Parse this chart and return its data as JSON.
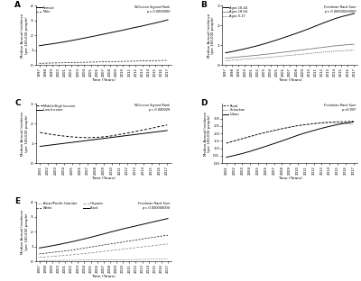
{
  "years": [
    1997,
    1998,
    1999,
    2000,
    2001,
    2002,
    2003,
    2004,
    2005,
    2006,
    2007,
    2008,
    2009,
    2010,
    2011,
    2012,
    2013,
    2014,
    2015,
    2016,
    2017
  ],
  "panel_A": {
    "title": "Wilcoxon Signed Rank",
    "pvalue": "p < 0.0000000",
    "label": "A",
    "female": [
      1.3,
      1.37,
      1.43,
      1.5,
      1.57,
      1.65,
      1.73,
      1.82,
      1.9,
      1.99,
      2.08,
      2.17,
      2.26,
      2.35,
      2.45,
      2.54,
      2.63,
      2.73,
      2.83,
      2.93,
      3.05
    ],
    "male": [
      0.12,
      0.13,
      0.14,
      0.15,
      0.16,
      0.17,
      0.18,
      0.19,
      0.2,
      0.21,
      0.22,
      0.23,
      0.24,
      0.25,
      0.26,
      0.27,
      0.28,
      0.29,
      0.3,
      0.31,
      0.32
    ],
    "ylim": [
      0,
      4
    ],
    "yticks": [
      0,
      1,
      2,
      3,
      4
    ]
  },
  "panel_B": {
    "title": "Friedman Rank Sum",
    "pvalue": "p < 0.00000000000",
    "label": "B",
    "age1_label": "Ages 18-44",
    "age2_label": "Ages 18-64",
    "age3_label": "Ages 0-17",
    "age1": [
      0.62,
      0.68,
      0.75,
      0.82,
      0.9,
      0.98,
      1.07,
      1.17,
      1.27,
      1.38,
      1.49,
      1.6,
      1.72,
      1.84,
      1.97,
      2.1,
      2.22,
      2.34,
      2.44,
      2.52,
      2.6
    ],
    "age2": [
      0.35,
      0.38,
      0.41,
      0.44,
      0.47,
      0.5,
      0.54,
      0.57,
      0.61,
      0.65,
      0.69,
      0.73,
      0.77,
      0.81,
      0.85,
      0.89,
      0.93,
      0.97,
      1.0,
      1.03,
      1.05
    ],
    "age3": [
      0.22,
      0.25,
      0.27,
      0.3,
      0.32,
      0.35,
      0.37,
      0.4,
      0.43,
      0.46,
      0.49,
      0.52,
      0.55,
      0.58,
      0.62,
      0.65,
      0.68,
      0.7,
      0.72,
      0.74,
      0.75
    ],
    "ylim": [
      0,
      3
    ],
    "yticks": [
      0,
      1,
      2,
      3
    ]
  },
  "panel_C": {
    "title": "Wilcoxon Signed Rank",
    "pvalue": "p < 0.000029",
    "label": "C",
    "years_C": [
      2001,
      2002,
      2003,
      2004,
      2005,
      2006,
      2007,
      2008,
      2009,
      2010,
      2011,
      2012,
      2013,
      2014,
      2015,
      2016,
      2017
    ],
    "middle_high": [
      1.55,
      1.48,
      1.42,
      1.37,
      1.33,
      1.3,
      1.29,
      1.3,
      1.33,
      1.38,
      1.45,
      1.52,
      1.6,
      1.68,
      1.76,
      1.85,
      1.93
    ],
    "low_income": [
      0.85,
      0.9,
      0.95,
      1.0,
      1.05,
      1.1,
      1.15,
      1.2,
      1.25,
      1.3,
      1.35,
      1.4,
      1.45,
      1.5,
      1.55,
      1.6,
      1.65
    ],
    "ylim": [
      0,
      3
    ],
    "yticks": [
      0,
      1,
      2,
      3
    ]
  },
  "panel_D": {
    "title": "Friedman Rank Sum",
    "pvalue": "p <0.007",
    "label": "D",
    "years_D": [
      2001,
      2002,
      2003,
      2004,
      2005,
      2006,
      2007,
      2008,
      2009,
      2010,
      2011,
      2012,
      2013,
      2014,
      2015,
      2016,
      2017
    ],
    "rural": [
      1.35,
      1.5,
      1.65,
      1.8,
      1.95,
      2.08,
      2.2,
      2.32,
      2.43,
      2.53,
      2.6,
      2.67,
      2.72,
      2.76,
      2.79,
      2.8,
      2.82
    ],
    "suburban": [
      1.35,
      1.5,
      1.65,
      1.8,
      1.95,
      2.08,
      2.2,
      2.32,
      2.42,
      2.52,
      2.59,
      2.65,
      2.7,
      2.73,
      2.73,
      2.68,
      2.6
    ],
    "urban": [
      0.4,
      0.52,
      0.65,
      0.8,
      0.97,
      1.14,
      1.32,
      1.5,
      1.69,
      1.88,
      2.05,
      2.2,
      2.35,
      2.48,
      2.6,
      2.7,
      2.78
    ],
    "ylim": [
      0,
      4
    ],
    "yticks": [
      0.0,
      0.5,
      1.0,
      1.5,
      2.0,
      2.5,
      3.0
    ]
  },
  "panel_E": {
    "title": "Friedman Rank Sum",
    "pvalue": "p < 0.000000000",
    "label": "E",
    "asian": [
      0.05,
      0.055,
      0.06,
      0.065,
      0.07,
      0.075,
      0.08,
      0.085,
      0.09,
      0.095,
      0.1,
      0.105,
      0.11,
      0.115,
      0.12,
      0.125,
      0.13,
      0.135,
      0.14,
      0.145,
      0.15
    ],
    "white": [
      0.5,
      0.55,
      0.6,
      0.65,
      0.7,
      0.75,
      0.82,
      0.89,
      0.96,
      1.03,
      1.1,
      1.17,
      1.23,
      1.3,
      1.37,
      1.43,
      1.5,
      1.57,
      1.63,
      1.7,
      1.75
    ],
    "hispanic": [
      0.27,
      0.3,
      0.33,
      0.37,
      0.4,
      0.44,
      0.48,
      0.52,
      0.57,
      0.62,
      0.67,
      0.72,
      0.77,
      0.82,
      0.87,
      0.92,
      0.97,
      1.02,
      1.07,
      1.12,
      1.17
    ],
    "black": [
      0.9,
      0.97,
      1.05,
      1.13,
      1.22,
      1.31,
      1.41,
      1.51,
      1.62,
      1.73,
      1.84,
      1.96,
      2.07,
      2.18,
      2.28,
      2.38,
      2.48,
      2.58,
      2.68,
      2.78,
      2.88
    ],
    "ylim": [
      0,
      4
    ],
    "yticks": [
      0,
      1,
      2,
      3,
      4
    ]
  },
  "ylabel": "Median Annual Incidence\n(per 100,000 people)",
  "xlabel": "Time (Years)",
  "bg_color": "#ffffff",
  "line_color": "#000000",
  "gray_color": "#777777"
}
